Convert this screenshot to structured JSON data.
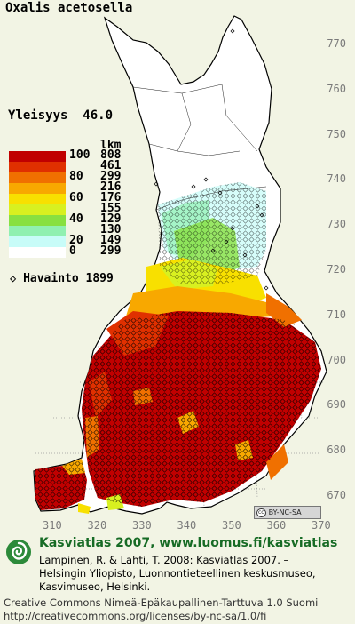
{
  "map": {
    "species": "Oxalis acetosella",
    "frequency_label": "Yleisyys",
    "frequency_value": "46.0",
    "count_header": "lkm",
    "legend": [
      {
        "label": "100",
        "count": "808",
        "color": "#c00000"
      },
      {
        "label": "",
        "count": "461",
        "color": "#e03000"
      },
      {
        "label": "80",
        "count": "299",
        "color": "#f07000"
      },
      {
        "label": "",
        "count": "216",
        "color": "#f8a800"
      },
      {
        "label": "60",
        "count": "176",
        "color": "#f8e000"
      },
      {
        "label": "",
        "count": "155",
        "color": "#d8f020"
      },
      {
        "label": "40",
        "count": "129",
        "color": "#88e040"
      },
      {
        "label": "",
        "count": "130",
        "color": "#90f0b0"
      },
      {
        "label": "20",
        "count": "149",
        "color": "#c8fcf8"
      },
      {
        "label": "0",
        "count": "299",
        "color": "#ffffff"
      }
    ],
    "observation_label": "Havainto 1899",
    "observation_symbol": "◇",
    "lat_labels": [
      "770",
      "760",
      "750",
      "740",
      "730",
      "720",
      "710",
      "700",
      "690",
      "680",
      "670"
    ],
    "lon_labels": [
      "310",
      "320",
      "330",
      "340",
      "350",
      "360",
      "370"
    ],
    "license_badge": "BY-NC-SA",
    "license_badge_symbol": "cc"
  },
  "footer": {
    "title": "Kasviatlas 2007, www.luomus.fi/kasviatlas",
    "citation_line1": "Lampinen, R. & Lahti, T. 2008: Kasviatlas 2007. –",
    "citation_line2": "Helsingin Yliopisto, Luonnontieteellinen keskusmuseo,",
    "citation_line3": "Kasvimuseo, Helsinki.",
    "license_line1": "Creative Commons Nimeä-Epäkaupallinen-Tarttuva 1.0 Suomi",
    "license_line2": "http://creativecommons.org/licenses/by-nc-sa/1.0/fi"
  },
  "colors": {
    "background": "#f2f4e4",
    "land": "#ffffff",
    "border": "#000000",
    "grid": "#9a9a9a",
    "footer_title": "#176b25"
  }
}
